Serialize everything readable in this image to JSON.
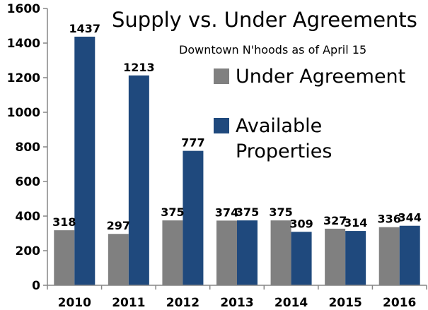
{
  "chart_data": {
    "type": "bar",
    "title": "Supply vs. Under Agreements",
    "subtitle": "Downtown N'hoods as of April 15",
    "categories": [
      "2010",
      "2011",
      "2012",
      "2013",
      "2014",
      "2015",
      "2016"
    ],
    "series": [
      {
        "name": "Under Agreement",
        "color": "#808080",
        "values": [
          318,
          297,
          375,
          374,
          375,
          327,
          336
        ]
      },
      {
        "name": "Available Properties",
        "name_lines": [
          "Available",
          "Properties"
        ],
        "color": "#1f497d",
        "values": [
          1437,
          1213,
          777,
          375,
          309,
          314,
          344
        ]
      }
    ],
    "yticks": [
      0,
      200,
      400,
      600,
      800,
      1000,
      1200,
      1400,
      1600
    ],
    "ylim": [
      0,
      1600
    ],
    "legend_position": "top-right",
    "grid": false,
    "data_labels": true
  }
}
